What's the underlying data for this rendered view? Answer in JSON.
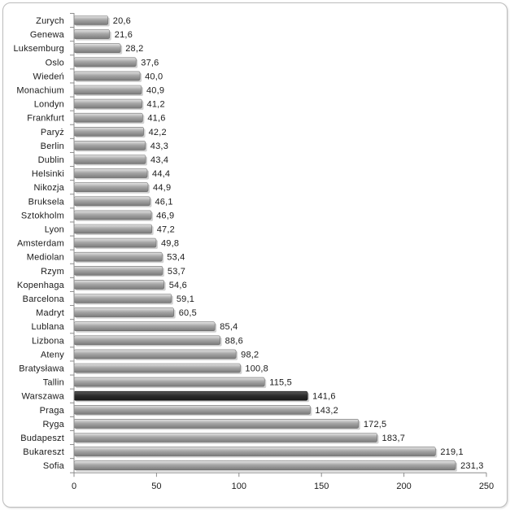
{
  "chart_data": {
    "type": "bar",
    "orientation": "horizontal",
    "categories": [
      "Zurych",
      "Genewa",
      "Luksemburg",
      "Oslo",
      "Wiedeń",
      "Monachium",
      "Londyn",
      "Frankfurt",
      "Paryż",
      "Berlin",
      "Dublin",
      "Helsinki",
      "Nikozja",
      "Bruksela",
      "Sztokholm",
      "Lyon",
      "Amsterdam",
      "Mediolan",
      "Rzym",
      "Kopenhaga",
      "Barcelona",
      "Madryt",
      "Lublana",
      "Lizbona",
      "Ateny",
      "Bratysława",
      "Tallin",
      "Warszawa",
      "Praga",
      "Ryga",
      "Budapeszt",
      "Bukareszt",
      "Sofia"
    ],
    "values": [
      20.6,
      21.6,
      28.2,
      37.6,
      40.0,
      40.9,
      41.2,
      41.6,
      42.2,
      43.3,
      43.4,
      44.4,
      44.9,
      46.1,
      46.9,
      47.2,
      49.8,
      53.4,
      53.7,
      54.6,
      59.1,
      60.5,
      85.4,
      88.6,
      98.2,
      100.8,
      115.5,
      141.6,
      143.2,
      172.5,
      183.7,
      219.1,
      231.3
    ],
    "value_labels": [
      "20,6",
      "21,6",
      "28,2",
      "37,6",
      "40,0",
      "40,9",
      "41,2",
      "41,6",
      "42,2",
      "43,3",
      "43,4",
      "44,4",
      "44,9",
      "46,1",
      "46,9",
      "47,2",
      "49,8",
      "53,4",
      "53,7",
      "54,6",
      "59,1",
      "60,5",
      "85,4",
      "88,6",
      "98,2",
      "100,8",
      "115,5",
      "141,6",
      "143,2",
      "172,5",
      "183,7",
      "219,1",
      "231,3"
    ],
    "highlight_category": "Warszawa",
    "title": "",
    "xlabel": "",
    "ylabel": "",
    "xlim": [
      0,
      250
    ],
    "xticks": [
      0,
      50,
      100,
      150,
      200,
      250
    ],
    "grid": false,
    "legend": "none",
    "colors": {
      "bar": "#9a9a9a",
      "bar_highlight": "#2e2e2e",
      "axis": "#8c8c8c",
      "text": "#1a1a1a"
    }
  }
}
